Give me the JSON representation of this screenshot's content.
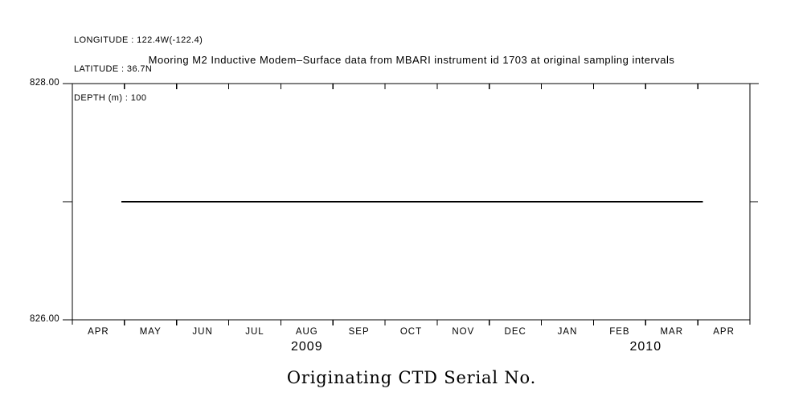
{
  "page": {
    "background_color": "#ffffff",
    "ink_color": "#000000"
  },
  "metadata_block": {
    "lines": [
      "LONGITUDE : 122.4W(-122.4)",
      "LATITUDE : 36.7N",
      "DEPTH (m) : 100"
    ]
  },
  "chart_data": {
    "type": "line",
    "title": "Mooring M2 Inductive Modem–Surface data from MBARI instrument id 1703 at original sampling intervals",
    "bottom_title": "Originating CTD Serial No.",
    "ylim": [
      826.0,
      828.0
    ],
    "y_ticks": [
      {
        "value": 828.0,
        "label": "828.00"
      },
      {
        "value": 827.0,
        "label": ""
      },
      {
        "value": 826.0,
        "label": "826.00"
      }
    ],
    "x_tick_months": [
      "APR",
      "MAY",
      "JUN",
      "JUL",
      "AUG",
      "SEP",
      "OCT",
      "NOV",
      "DEC",
      "JAN",
      "FEB",
      "MAR",
      "APR"
    ],
    "x_years": [
      {
        "label": "2009",
        "month_span": [
          0,
          9
        ]
      },
      {
        "label": "2010",
        "month_span": [
          9,
          13
        ]
      }
    ],
    "grid": false,
    "frame": "box",
    "legend": "none",
    "series": [
      {
        "name": "Originating CTD Serial No.",
        "value": 827.0,
        "x_start_month_frac": 0.94,
        "x_end_month_frac": 12.1
      }
    ]
  }
}
